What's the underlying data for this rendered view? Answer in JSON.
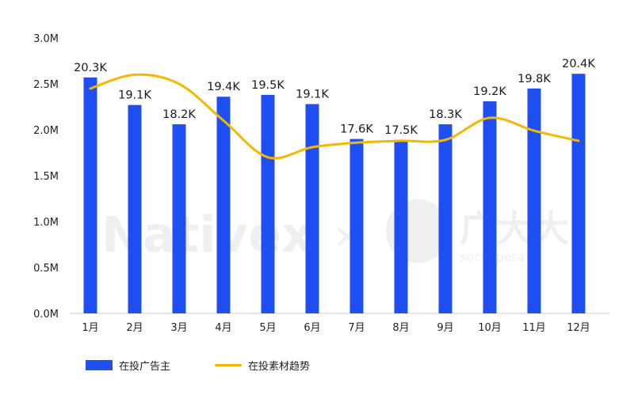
{
  "chart_data": {
    "type": "bar",
    "categories": [
      "1月",
      "2月",
      "3月",
      "4月",
      "5月",
      "6月",
      "7月",
      "8月",
      "9月",
      "10月",
      "11月",
      "12月"
    ],
    "series": [
      {
        "name": "在投广告主",
        "kind": "bar",
        "color": "#1f4ff0",
        "values": [
          2.57,
          2.27,
          2.06,
          2.36,
          2.38,
          2.28,
          1.9,
          1.89,
          2.06,
          2.31,
          2.45,
          2.61
        ],
        "data_labels": [
          "20.3K",
          "19.1K",
          "18.2K",
          "19.4K",
          "19.5K",
          "19.1K",
          "17.6K",
          "17.5K",
          "18.3K",
          "19.2K",
          "19.8K",
          "20.4K"
        ]
      },
      {
        "name": "在投素材趋势",
        "kind": "line",
        "color": "#f5b800",
        "values": [
          2.45,
          2.6,
          2.5,
          2.1,
          1.7,
          1.81,
          1.86,
          1.88,
          1.89,
          2.13,
          1.99,
          1.88
        ]
      }
    ],
    "ylim": [
      0,
      3.0
    ],
    "yticks": [
      "0.0M",
      "0.5M",
      "1.0M",
      "1.5M",
      "2.0M",
      "2.5M",
      "3.0M"
    ],
    "ytick_values": [
      0,
      0.5,
      1.0,
      1.5,
      2.0,
      2.5,
      3.0
    ],
    "legend_position": "bottom-left",
    "grid": false,
    "watermark": "Nativex × 广大大 socialpeta"
  }
}
